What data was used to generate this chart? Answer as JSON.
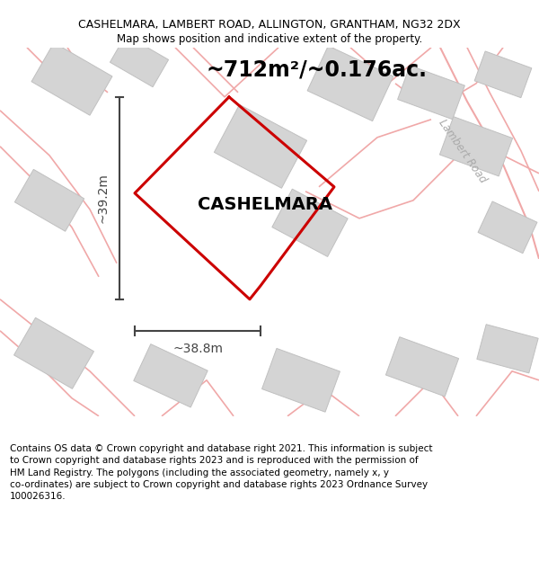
{
  "title_line1": "CASHELMARA, LAMBERT ROAD, ALLINGTON, GRANTHAM, NG32 2DX",
  "title_line2": "Map shows position and indicative extent of the property.",
  "area_label": "~712m²/~0.176ac.",
  "property_name": "CASHELMARA",
  "dim_width": "~38.8m",
  "dim_height": "~39.2m",
  "road_label": "Lambert Road",
  "footer_line1": "Contains OS data © Crown copyright and database right 2021. This information is subject",
  "footer_line2": "to Crown copyright and database rights 2023 and is reproduced with the permission of",
  "footer_line3": "HM Land Registry. The polygons (including the associated geometry, namely x, y",
  "footer_line4": "co-ordinates) are subject to Crown copyright and database rights 2023 Ordnance Survey",
  "footer_line5": "100026316.",
  "bg_color": "#ffffff",
  "road_color": "#f0a8a8",
  "building_fill": "#d4d4d4",
  "building_edge": "#c0c0c0",
  "plot_color": "#cc0000",
  "dim_color": "#444444",
  "title_color": "#000000",
  "property_label_color": "#000000",
  "road_label_color": "#aaaaaa",
  "footer_color": "#000000",
  "title_fontsize": 9.0,
  "area_fontsize": 17,
  "property_fontsize": 14,
  "dim_fontsize": 10,
  "road_label_fontsize": 8.5,
  "footer_fontsize": 7.5
}
